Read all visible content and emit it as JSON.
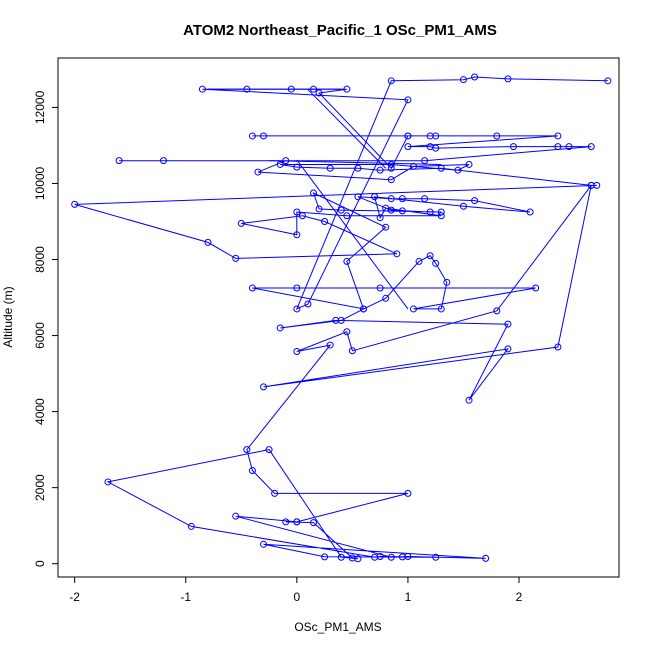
{
  "chart_data": {
    "type": "scatter",
    "title": "ATOM2 Northeast_Pacific_1 OSc_PM1_AMS",
    "xlabel": "OSc_PM1_AMS",
    "ylabel": "Altitude (m)",
    "xlim": [
      -2.15,
      2.9
    ],
    "ylim": [
      -350,
      13300
    ],
    "xticks": [
      -2,
      -1,
      0,
      1,
      2
    ],
    "yticks": [
      0,
      2000,
      4000,
      6000,
      8000,
      10000,
      12000
    ],
    "grid": false,
    "line_color": "#0000ff",
    "series": [
      {
        "points": [
          [
            2.8,
            12700
          ],
          [
            1.9,
            12750
          ],
          [
            1.6,
            12800
          ],
          [
            1.5,
            12730
          ],
          [
            0.85,
            12700
          ],
          [
            0.0,
            6700
          ],
          [
            0.1,
            6830
          ],
          [
            1.0,
            12200
          ],
          [
            -0.85,
            12480
          ],
          [
            -0.45,
            12480
          ],
          [
            -0.05,
            12480
          ],
          [
            0.15,
            12480
          ],
          [
            0.45,
            12480
          ],
          [
            0.2,
            12380
          ],
          [
            0.85,
            10400
          ],
          [
            1.0,
            11250
          ],
          [
            -0.4,
            11250
          ],
          [
            -0.3,
            11250
          ],
          [
            1.0,
            11250
          ],
          [
            1.2,
            11250
          ],
          [
            1.25,
            11250
          ],
          [
            1.8,
            11250
          ],
          [
            2.35,
            11250
          ],
          [
            1.0,
            10970
          ],
          [
            1.2,
            10970
          ],
          [
            1.25,
            10930
          ],
          [
            1.95,
            10970
          ],
          [
            2.35,
            10970
          ],
          [
            2.45,
            10970
          ],
          [
            2.65,
            10970
          ],
          [
            1.15,
            10600
          ],
          [
            -1.6,
            10600
          ],
          [
            -1.2,
            10600
          ],
          [
            -0.1,
            10600
          ],
          [
            -0.35,
            10300
          ],
          [
            0.85,
            10100
          ],
          [
            1.05,
            10450
          ],
          [
            1.55,
            10500
          ],
          [
            1.45,
            10350
          ],
          [
            0.85,
            10500
          ],
          [
            -0.15,
            10500
          ],
          [
            0.0,
            10430
          ],
          [
            0.3,
            10400
          ],
          [
            0.55,
            10400
          ],
          [
            0.75,
            10350
          ],
          [
            1.3,
            10400
          ],
          [
            2.65,
            9950
          ],
          [
            2.7,
            9950
          ],
          [
            -2.0,
            9450
          ],
          [
            -0.8,
            8450
          ],
          [
            -0.55,
            8030
          ],
          [
            0.9,
            8150
          ],
          [
            0.25,
            9000
          ],
          [
            0.05,
            9150
          ],
          [
            -0.5,
            8950
          ],
          [
            0.0,
            8650
          ],
          [
            0.0,
            9250
          ],
          [
            0.45,
            9150
          ],
          [
            1.3,
            9150
          ],
          [
            0.8,
            9350
          ],
          [
            0.75,
            9100
          ],
          [
            0.7,
            9650
          ],
          [
            1.5,
            9400
          ],
          [
            2.1,
            9250
          ],
          [
            1.6,
            9550
          ],
          [
            1.15,
            9600
          ],
          [
            0.95,
            9600
          ],
          [
            0.85,
            9600
          ],
          [
            0.55,
            9650
          ],
          [
            0.85,
            9300
          ],
          [
            0.95,
            9280
          ],
          [
            1.2,
            9250
          ],
          [
            1.3,
            9250
          ],
          [
            0.4,
            9300
          ],
          [
            0.2,
            9330
          ],
          [
            0.15,
            9750
          ],
          [
            0.8,
            8850
          ],
          [
            0.45,
            7950
          ],
          [
            0.6,
            6700
          ],
          [
            -0.4,
            7250
          ],
          [
            0.0,
            7250
          ],
          [
            0.75,
            7250
          ],
          [
            2.15,
            7250
          ],
          [
            1.05,
            6700
          ],
          [
            1.3,
            6700
          ],
          [
            1.35,
            7400
          ],
          [
            1.25,
            7900
          ],
          [
            1.2,
            8100
          ],
          [
            1.1,
            7950
          ],
          [
            0.8,
            6980
          ],
          [
            0.6,
            6700
          ],
          [
            0.4,
            6400
          ],
          [
            -0.15,
            6200
          ],
          [
            0.35,
            6400
          ],
          [
            1.9,
            6300
          ],
          [
            1.55,
            4300
          ],
          [
            1.9,
            5650
          ],
          [
            -0.3,
            4650
          ],
          [
            2.35,
            5700
          ],
          [
            2.65,
            9950
          ],
          [
            1.8,
            6650
          ],
          [
            0.5,
            5600
          ],
          [
            0.45,
            6100
          ],
          [
            0.0,
            5580
          ],
          [
            0.3,
            5750
          ],
          [
            -0.45,
            3000
          ],
          [
            -0.4,
            2450
          ],
          [
            -0.2,
            1850
          ],
          [
            1.0,
            1850
          ],
          [
            0.0,
            1100
          ],
          [
            0.0,
            1100
          ],
          [
            -0.55,
            1250
          ],
          [
            0.85,
            170
          ],
          [
            1.0,
            190
          ],
          [
            1.7,
            140
          ],
          [
            -0.3,
            510
          ],
          [
            0.25,
            180
          ],
          [
            1.25,
            170
          ],
          [
            0.95,
            180
          ],
          [
            0.75,
            190
          ],
          [
            0.7,
            170
          ],
          [
            -0.95,
            980
          ],
          [
            -1.7,
            2150
          ],
          [
            -0.25,
            3000
          ],
          [
            0.4,
            170
          ],
          [
            0.55,
            130
          ],
          [
            0.5,
            150
          ],
          [
            0.15,
            1080
          ],
          [
            -0.1,
            1100
          ]
        ]
      }
    ],
    "extra_segments": [
      [
        [
          -0.35,
          7250
        ],
        [
          2.1,
          7250
        ]
      ],
      [
        [
          0.1,
          12470
        ],
        [
          0.8,
          10400
        ]
      ],
      [
        [
          -0.8,
          12480
        ],
        [
          0.4,
          12480
        ]
      ],
      [
        [
          -0.25,
          10600
        ],
        [
          1.3,
          10500
        ]
      ],
      [
        [
          0.0,
          10620
        ],
        [
          1.0,
          6700
        ]
      ]
    ]
  }
}
